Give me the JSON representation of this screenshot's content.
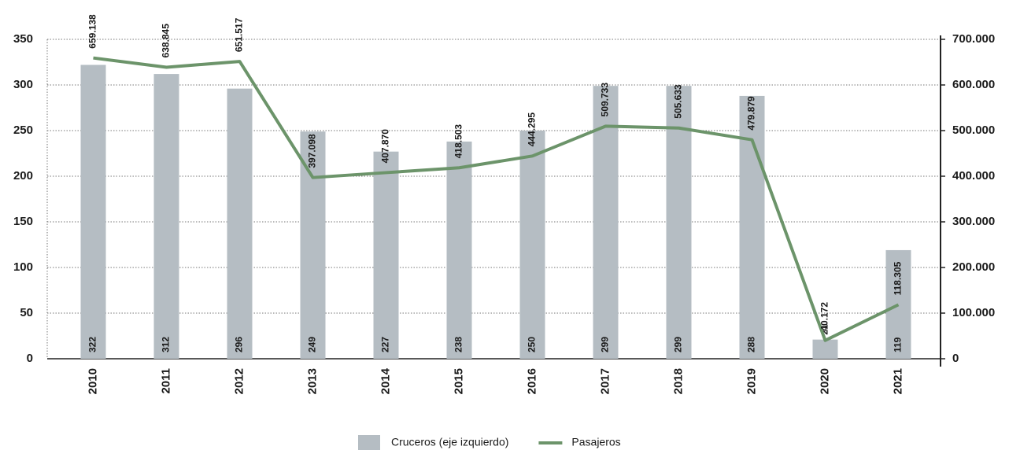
{
  "chart_data": {
    "type": "bar_line",
    "categories": [
      "2010",
      "2011",
      "2012",
      "2013",
      "2014",
      "2015",
      "2016",
      "2017",
      "2018",
      "2019",
      "2020",
      "2021"
    ],
    "series": [
      {
        "name": "Cruceros (eje izquierdo)",
        "type": "bar",
        "color": "#b5bdc3",
        "axis": "y",
        "values": [
          322,
          312,
          296,
          249,
          227,
          238,
          250,
          299,
          299,
          288,
          21,
          119
        ]
      },
      {
        "name": "Pasajeros",
        "type": "line",
        "color": "#6c946a",
        "axis": "y2",
        "values": [
          659138,
          638845,
          651517,
          397098,
          407870,
          418503,
          444295,
          509733,
          505633,
          479879,
          40172,
          118305
        ],
        "value_labels": [
          "659.138",
          "638.845",
          "651.517",
          "397.098",
          "407.870",
          "418.503",
          "444.295",
          "509.733",
          "505.633",
          "479.879",
          "40.172",
          "118.305"
        ]
      }
    ],
    "ylim": [
      0,
      350
    ],
    "yticks": [
      0,
      50,
      100,
      150,
      200,
      250,
      300,
      350
    ],
    "y2lim": [
      0,
      700000
    ],
    "y2ticks": [
      {
        "value": 0,
        "label": "0"
      },
      {
        "value": 100000,
        "label": "100.000"
      },
      {
        "value": 200000,
        "label": "200.000"
      },
      {
        "value": 300000,
        "label": "300.000"
      },
      {
        "value": 400000,
        "label": "400.000"
      },
      {
        "value": 500000,
        "label": "500.000"
      },
      {
        "value": 600000,
        "label": "600.000"
      },
      {
        "value": 700000,
        "label": "700.000"
      }
    ],
    "grid": true,
    "legend": "bottom"
  }
}
